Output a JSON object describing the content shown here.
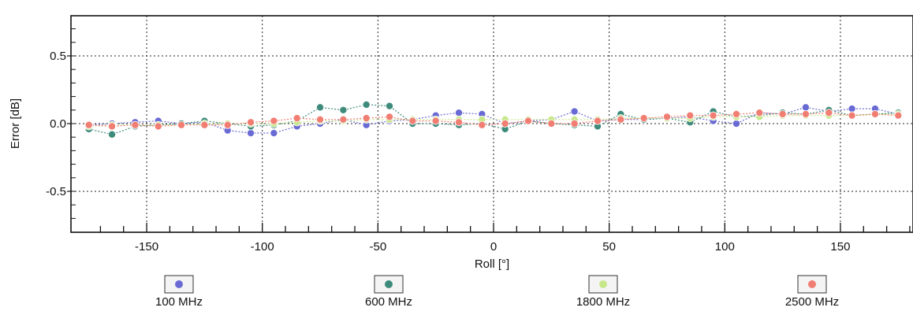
{
  "chart_data": {
    "type": "line",
    "title": "",
    "xlabel": "Roll [°]",
    "ylabel": "Error [dB]",
    "xlim": [
      -180,
      180
    ],
    "ylim": [
      -0.8,
      0.8
    ],
    "xticks": [
      -150,
      -100,
      -50,
      0,
      50,
      100,
      150
    ],
    "yticks": [
      0.5,
      0.0,
      -0.5
    ],
    "ytick_labels": [
      "0.5",
      "0.0",
      "-0.5"
    ],
    "grid": true,
    "legend_position": "bottom",
    "x": [
      -175,
      -165,
      -155,
      -145,
      -135,
      -125,
      -115,
      -105,
      -95,
      -85,
      -75,
      -65,
      -55,
      -45,
      -35,
      -25,
      -15,
      -5,
      5,
      15,
      25,
      35,
      45,
      55,
      65,
      75,
      85,
      95,
      105,
      115,
      125,
      135,
      145,
      155,
      165,
      175
    ],
    "series": [
      {
        "name": "100 MHz",
        "color": "#6a6ad4",
        "values": [
          -0.01,
          0.0,
          0.01,
          0.02,
          0.0,
          0.01,
          -0.05,
          -0.07,
          -0.07,
          -0.02,
          0.0,
          0.03,
          -0.01,
          0.02,
          0.03,
          0.06,
          0.08,
          0.07,
          0.0,
          0.02,
          0.03,
          0.09,
          0.02,
          0.03,
          0.03,
          0.04,
          0.05,
          0.02,
          0.0,
          0.08,
          0.07,
          0.12,
          0.09,
          0.11,
          0.11,
          0.07
        ]
      },
      {
        "name": "600 MHz",
        "color": "#3e8b7c",
        "values": [
          -0.04,
          -0.08,
          -0.02,
          -0.01,
          0.0,
          0.02,
          0.0,
          -0.02,
          -0.01,
          0.02,
          0.12,
          0.1,
          0.14,
          0.13,
          0.0,
          0.0,
          -0.01,
          0.0,
          -0.04,
          0.02,
          0.0,
          -0.01,
          -0.02,
          0.07,
          0.03,
          0.04,
          0.01,
          0.09,
          0.05,
          0.06,
          0.08,
          0.07,
          0.1,
          0.06,
          0.07,
          0.08
        ]
      },
      {
        "name": "1800 MHz",
        "color": "#c7e88a",
        "values": [
          -0.02,
          -0.01,
          -0.01,
          -0.01,
          -0.01,
          0.0,
          0.0,
          0.0,
          0.0,
          0.01,
          0.02,
          0.02,
          0.03,
          0.03,
          0.03,
          0.03,
          0.03,
          0.03,
          0.03,
          0.03,
          0.03,
          0.03,
          0.03,
          0.04,
          0.04,
          0.04,
          0.04,
          0.05,
          0.05,
          0.05,
          0.06,
          0.06,
          0.06,
          0.06,
          0.07,
          0.07
        ]
      },
      {
        "name": "2500 MHz",
        "color": "#f07e72",
        "values": [
          -0.01,
          -0.02,
          -0.01,
          -0.02,
          -0.01,
          -0.01,
          -0.01,
          0.01,
          0.02,
          0.04,
          0.03,
          0.03,
          0.04,
          0.05,
          0.02,
          0.02,
          0.01,
          -0.01,
          0.0,
          0.02,
          0.0,
          0.0,
          0.02,
          0.03,
          0.04,
          0.05,
          0.06,
          0.06,
          0.07,
          0.08,
          0.07,
          0.07,
          0.08,
          0.06,
          0.07,
          0.06
        ]
      }
    ]
  }
}
